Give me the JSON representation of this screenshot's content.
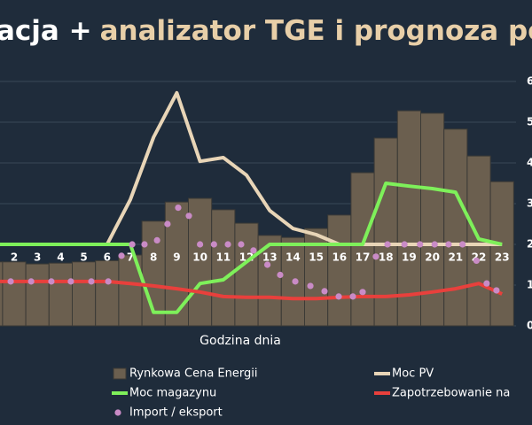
{
  "chart_data": {
    "type": "combo",
    "title": [
      "acja +",
      "analizator TGE i prognoza po"
    ],
    "title_colors": [
      "#ffffff",
      "#e8cfa8"
    ],
    "xlabel": "Godzina dnia",
    "categories": [
      null,
      "2",
      "3",
      "4",
      "5",
      "6",
      "7",
      "8",
      "9",
      "10",
      "11",
      "12",
      "13",
      "14",
      "15",
      "16",
      "17",
      "18",
      "19",
      "20",
      "21",
      "22",
      "23"
    ],
    "ylim": [
      0,
      6
    ],
    "yticks": [
      0,
      1,
      2,
      3,
      4,
      5,
      6
    ],
    "grid": true,
    "legend": "bottom",
    "series": [
      {
        "name": "Rynkowa Cena Energii",
        "type": "bar",
        "color": "#6b5f4f",
        "values": [
          1.57,
          1.57,
          1.52,
          1.54,
          1.57,
          1.6,
          1.74,
          2.57,
          3.04,
          3.13,
          2.85,
          2.52,
          2.22,
          2.17,
          2.39,
          2.72,
          3.76,
          4.61,
          5.28,
          5.22,
          4.83,
          4.17,
          3.54
        ]
      },
      {
        "name": "Moc PV",
        "type": "line",
        "color": "#e8d5b7",
        "values": [
          2.0,
          2.0,
          2.0,
          2.0,
          2.0,
          2.0,
          3.1,
          4.63,
          5.72,
          4.04,
          4.13,
          3.7,
          2.83,
          2.39,
          2.24,
          2.0,
          2.0,
          2.0,
          2.0,
          2.0,
          2.0,
          2.0,
          2.0
        ]
      },
      {
        "name": "Moc magazynu",
        "type": "line",
        "color": "#7ef05a",
        "values": [
          2.0,
          2.0,
          2.0,
          2.0,
          2.0,
          2.0,
          2.0,
          0.33,
          0.33,
          1.04,
          1.13,
          1.57,
          2.0,
          2.0,
          2.0,
          2.0,
          2.0,
          3.5,
          3.43,
          3.37,
          3.28,
          2.13,
          2.0
        ]
      },
      {
        "name": "Zapotrzebowanie na",
        "type": "line",
        "color": "#e8403c",
        "values": [
          1.09,
          1.09,
          1.09,
          1.09,
          1.09,
          1.09,
          1.04,
          0.98,
          0.91,
          0.83,
          0.72,
          0.7,
          0.7,
          0.67,
          0.67,
          0.7,
          0.72,
          0.72,
          0.76,
          0.83,
          0.91,
          1.04,
          0.78
        ]
      },
      {
        "name": "Import / eksport",
        "type": "scatter",
        "color": "#c98bc6",
        "x": [
          1.85,
          2.73,
          3.6,
          4.44,
          5.32,
          6.05,
          6.62,
          7.08,
          7.61,
          8.15,
          8.6,
          9.06,
          9.52,
          10.0,
          10.6,
          11.2,
          11.77,
          12.3,
          12.9,
          13.45,
          14.1,
          14.75,
          15.36,
          15.97,
          16.58,
          17.0,
          17.57,
          18.07,
          18.8,
          19.47,
          20.1,
          20.7,
          21.3,
          21.9,
          22.34,
          22.76
        ],
        "values": [
          1.09,
          1.09,
          1.09,
          1.09,
          1.09,
          1.09,
          1.72,
          2.0,
          2.0,
          2.1,
          2.5,
          2.9,
          2.7,
          2.0,
          2.0,
          2.0,
          2.0,
          1.85,
          1.5,
          1.25,
          1.09,
          0.98,
          0.85,
          0.72,
          0.72,
          0.83,
          1.7,
          2.0,
          2.0,
          2.0,
          2.0,
          2.0,
          2.0,
          1.6,
          1.04,
          0.87
        ]
      }
    ]
  }
}
